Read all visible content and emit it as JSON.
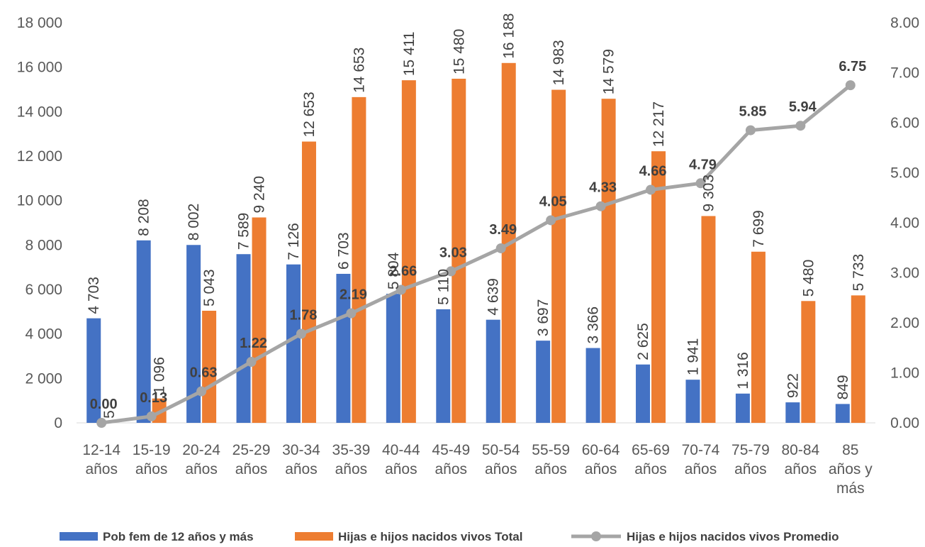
{
  "chart_data": {
    "type": "bar",
    "categories": [
      [
        "12-14",
        "años"
      ],
      [
        "15-19",
        "años"
      ],
      [
        "20-24",
        "años"
      ],
      [
        "25-29",
        "años"
      ],
      [
        "30-34",
        "años"
      ],
      [
        "35-39",
        "años"
      ],
      [
        "40-44",
        "años"
      ],
      [
        "45-49",
        "años"
      ],
      [
        "50-54",
        "años"
      ],
      [
        "55-59",
        "años"
      ],
      [
        "60-64",
        "años"
      ],
      [
        "65-69",
        "años"
      ],
      [
        "70-74",
        "años"
      ],
      [
        "75-79",
        "años"
      ],
      [
        "80-84",
        "años"
      ],
      [
        "85",
        "años y",
        "más"
      ]
    ],
    "series": [
      {
        "name": "Pob fem de 12 años y más",
        "type": "bar",
        "axis": "left",
        "color": "#4472C4",
        "values": [
          4703,
          8208,
          8002,
          7589,
          7126,
          6703,
          5804,
          5110,
          4639,
          3697,
          3366,
          2625,
          1941,
          1316,
          922,
          849
        ],
        "labels": [
          "4 703",
          "8 208",
          "8 002",
          "7 589",
          "7 126",
          "6 703",
          "5 804",
          "5 110",
          "4 639",
          "3 697",
          "3 366",
          "2 625",
          "1 941",
          "1 316",
          "922",
          "849"
        ]
      },
      {
        "name": "Hijas e hijos nacidos vivos Total",
        "type": "bar",
        "axis": "left",
        "color": "#ED7D31",
        "values": [
          5,
          1096,
          5043,
          9240,
          12653,
          14653,
          15411,
          15480,
          16188,
          14983,
          14579,
          12217,
          9303,
          7699,
          5480,
          5733
        ],
        "labels": [
          "5",
          "1 096",
          "5 043",
          "9 240",
          "12 653",
          "14 653",
          "15 411",
          "15 480",
          "16 188",
          "14 983",
          "14 579",
          "12 217",
          "9 303",
          "7 699",
          "5 480",
          "5 733"
        ]
      },
      {
        "name": "Hijas e hijos nacidos vivos Promedio",
        "type": "line",
        "axis": "right",
        "color": "#A5A5A5",
        "values": [
          0.0,
          0.13,
          0.63,
          1.22,
          1.78,
          2.19,
          2.66,
          3.03,
          3.49,
          4.05,
          4.33,
          4.66,
          4.79,
          5.85,
          5.94,
          6.75
        ],
        "labels": [
          "0.00",
          "0.13",
          "0.63",
          "1.22",
          "1.78",
          "2.19",
          "2.66",
          "3.03",
          "3.49",
          "4.05",
          "4.33",
          "4.66",
          "4.79",
          "5.85",
          "5.94",
          "6.75"
        ]
      }
    ],
    "y_left": {
      "ylim": [
        0,
        18000
      ],
      "ticks": [
        0,
        2000,
        4000,
        6000,
        8000,
        10000,
        12000,
        14000,
        16000,
        18000
      ],
      "tick_labels": [
        "0",
        "2 000",
        "4 000",
        "6 000",
        "8 000",
        "10 000",
        "12 000",
        "14 000",
        "16 000",
        "18 000"
      ]
    },
    "y_right": {
      "ylim": [
        0,
        8
      ],
      "ticks": [
        0,
        1,
        2,
        3,
        4,
        5,
        6,
        7,
        8
      ],
      "tick_labels": [
        "0.00",
        "1.00",
        "2.00",
        "3.00",
        "4.00",
        "5.00",
        "6.00",
        "7.00",
        "8.00"
      ]
    },
    "grid": false,
    "legend_position": "bottom"
  }
}
